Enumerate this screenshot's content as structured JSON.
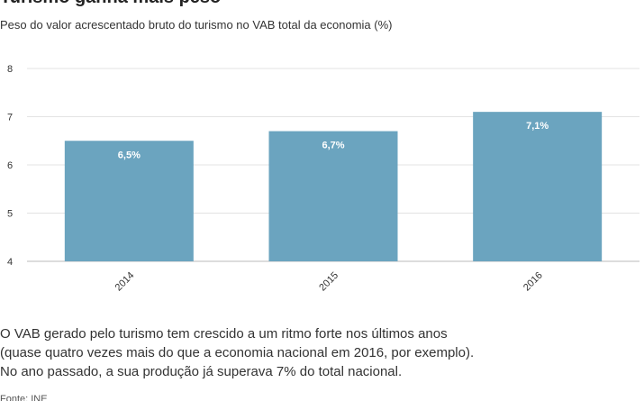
{
  "header": {
    "title": "Turismo ganha mais peso",
    "subtitle": "Peso do valor acrescentado bruto do turismo no VAB total da economia (%)"
  },
  "chart_data": {
    "type": "bar",
    "categories": [
      "2014",
      "2015",
      "2016"
    ],
    "values": [
      6.5,
      6.7,
      7.1
    ],
    "data_labels": [
      "6,5%",
      "6,7%",
      "7,1%"
    ],
    "ylim": [
      4,
      8
    ],
    "yticks": [
      4,
      5,
      6,
      7,
      8
    ],
    "grid": true,
    "bar_color": "#6ba4bf",
    "legend": "none"
  },
  "note": {
    "lines": [
      "O VAB gerado pelo turismo tem crescido a um ritmo forte nos últimos anos",
      "(quase quatro vezes mais do que a economia nacional em 2016, por exemplo).",
      "No ano passado, a sua produção já superava 7% do total nacional."
    ]
  },
  "source": "Fonte: INE"
}
